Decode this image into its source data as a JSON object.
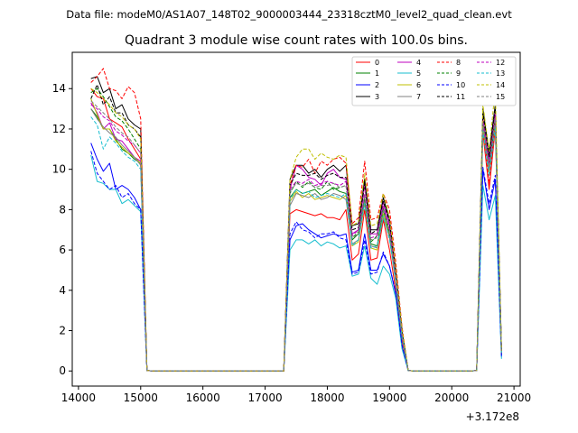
{
  "header": {
    "data_file": "Data file: modeM0/AS1A07_148T02_9000003444_23318cztM0_level2_quad_clean.evt"
  },
  "chart_data": {
    "type": "line",
    "title": "Quadrant 3 module wise count rates with 100.0s bins.",
    "xlabel": "",
    "ylabel": "",
    "x_offset_label": "+3.172e8",
    "xlim": [
      13900,
      21100
    ],
    "ylim": [
      -0.75,
      15.8
    ],
    "x_ticks": [
      14000,
      15000,
      16000,
      17000,
      18000,
      19000,
      20000,
      21000
    ],
    "x_tick_labels": [
      "14000",
      "15000",
      "16000",
      "17000",
      "18000",
      "19000",
      "20000",
      "21000"
    ],
    "y_ticks": [
      0,
      2,
      4,
      6,
      8,
      10,
      12,
      14
    ],
    "y_tick_labels": [
      "0",
      "2",
      "4",
      "6",
      "8",
      "10",
      "12",
      "14"
    ],
    "grid": false,
    "legend_position": "top-right",
    "legend_columns": 4,
    "x": [
      14200,
      14300,
      14400,
      14500,
      14600,
      14700,
      14800,
      14900,
      15000,
      15100,
      15200,
      15300,
      15400,
      15500,
      15600,
      15700,
      15800,
      15900,
      16000,
      16100,
      16200,
      16300,
      16400,
      16500,
      16600,
      16700,
      16800,
      16900,
      17000,
      17100,
      17200,
      17300,
      17400,
      17500,
      17600,
      17700,
      17800,
      17900,
      18000,
      18100,
      18200,
      18300,
      18400,
      18500,
      18600,
      18700,
      18800,
      18900,
      19000,
      19100,
      19200,
      19300,
      19400,
      19500,
      19600,
      19700,
      19800,
      19900,
      20000,
      20100,
      20200,
      20300,
      20400,
      20500,
      20600,
      20700,
      20800
    ],
    "series": [
      {
        "name": "0",
        "color": "#ff0000",
        "dash": "solid",
        "values": [
          14.0,
          13.6,
          13.5,
          12.5,
          12.3,
          12.1,
          11.5,
          11.0,
          10.5,
          0.02,
          0,
          0,
          0,
          0,
          0,
          0,
          0,
          0,
          0,
          0,
          0,
          0,
          0,
          0,
          0,
          0,
          0,
          0,
          0,
          0,
          0,
          0,
          7.8,
          8.0,
          7.9,
          7.8,
          7.7,
          7.8,
          7.6,
          7.6,
          7.5,
          8.0,
          5.5,
          5.8,
          8.0,
          5.5,
          5.6,
          7.5,
          6.0,
          4.0,
          1.5,
          0.02,
          0,
          0,
          0,
          0,
          0,
          0,
          0,
          0,
          0,
          0,
          0.02,
          11.8,
          9.0,
          12.0,
          0.8
        ]
      },
      {
        "name": "1",
        "color": "#008000",
        "dash": "solid",
        "values": [
          13.0,
          12.6,
          12.0,
          12.0,
          11.5,
          11.0,
          10.8,
          10.5,
          10.3,
          0.02,
          0,
          0,
          0,
          0,
          0,
          0,
          0,
          0,
          0,
          0,
          0,
          0,
          0,
          0,
          0,
          0,
          0,
          0,
          0,
          0,
          0,
          0,
          8.6,
          9.0,
          8.8,
          8.9,
          9.0,
          8.7,
          8.9,
          9.1,
          8.9,
          8.8,
          6.5,
          6.8,
          8.5,
          6.3,
          6.2,
          8.0,
          6.8,
          4.6,
          1.8,
          0.02,
          0,
          0,
          0,
          0,
          0,
          0,
          0,
          0,
          0,
          0,
          0.02,
          12.3,
          10.0,
          12.5,
          1.0
        ]
      },
      {
        "name": "2",
        "color": "#0000ff",
        "dash": "solid",
        "values": [
          11.3,
          10.5,
          9.9,
          10.3,
          9.0,
          9.2,
          9.0,
          8.6,
          8.0,
          0.02,
          0,
          0,
          0,
          0,
          0,
          0,
          0,
          0,
          0,
          0,
          0,
          0,
          0,
          0,
          0,
          0,
          0,
          0,
          0,
          0,
          0,
          0,
          6.5,
          7.2,
          7.3,
          7.0,
          6.8,
          6.6,
          6.7,
          6.8,
          6.7,
          6.8,
          4.9,
          5.0,
          6.8,
          5.0,
          5.0,
          5.8,
          5.2,
          3.8,
          1.2,
          0.02,
          0,
          0,
          0,
          0,
          0,
          0,
          0,
          0,
          0,
          0,
          0.02,
          10.0,
          8.0,
          9.5,
          0.7
        ]
      },
      {
        "name": "3",
        "color": "#000000",
        "dash": "solid",
        "values": [
          14.5,
          14.6,
          13.8,
          14.0,
          13.0,
          13.2,
          12.5,
          12.2,
          12.0,
          0.02,
          0,
          0,
          0,
          0,
          0,
          0,
          0,
          0,
          0,
          0,
          0,
          0,
          0,
          0,
          0,
          0,
          0,
          0,
          0,
          0,
          0,
          0,
          9.5,
          10.2,
          10.2,
          9.8,
          10.0,
          9.6,
          10.0,
          10.2,
          9.9,
          10.2,
          7.2,
          7.3,
          9.5,
          7.0,
          7.0,
          8.6,
          7.5,
          5.0,
          2.0,
          0.02,
          0,
          0,
          0,
          0,
          0,
          0,
          0,
          0,
          0,
          0,
          0.02,
          13.0,
          10.8,
          13.2,
          1.0
        ]
      },
      {
        "name": "4",
        "color": "#bf00bf",
        "dash": "solid",
        "values": [
          13.3,
          12.8,
          12.0,
          12.3,
          11.5,
          11.4,
          11.0,
          10.6,
          10.4,
          0.02,
          0,
          0,
          0,
          0,
          0,
          0,
          0,
          0,
          0,
          0,
          0,
          0,
          0,
          0,
          0,
          0,
          0,
          0,
          0,
          0,
          0,
          0,
          9.0,
          10.2,
          10.0,
          9.6,
          9.5,
          9.2,
          9.8,
          10.0,
          9.6,
          9.5,
          6.8,
          7.0,
          9.2,
          6.8,
          6.8,
          8.4,
          7.2,
          4.8,
          1.9,
          0.02,
          0,
          0,
          0,
          0,
          0,
          0,
          0,
          0,
          0,
          0,
          0.02,
          12.5,
          10.5,
          12.8,
          1.0
        ]
      },
      {
        "name": "5",
        "color": "#17becf",
        "dash": "solid",
        "values": [
          10.7,
          9.4,
          9.3,
          9.0,
          9.0,
          8.3,
          8.5,
          8.2,
          7.9,
          0.02,
          0,
          0,
          0,
          0,
          0,
          0,
          0,
          0,
          0,
          0,
          0,
          0,
          0,
          0,
          0,
          0,
          0,
          0,
          0,
          0,
          0,
          0,
          6.0,
          6.5,
          6.5,
          6.3,
          6.5,
          6.2,
          6.4,
          6.3,
          6.1,
          6.2,
          4.7,
          4.8,
          6.2,
          4.6,
          4.3,
          5.2,
          4.8,
          3.6,
          1.1,
          0.02,
          0,
          0,
          0,
          0,
          0,
          0,
          0,
          0,
          0,
          0,
          0.02,
          9.2,
          7.5,
          8.7,
          0.6
        ]
      },
      {
        "name": "6",
        "color": "#bfbf00",
        "dash": "solid",
        "values": [
          13.5,
          12.7,
          12.0,
          12.0,
          11.4,
          11.1,
          10.8,
          10.6,
          10.3,
          0.02,
          0,
          0,
          0,
          0,
          0,
          0,
          0,
          0,
          0,
          0,
          0,
          0,
          0,
          0,
          0,
          0,
          0,
          0,
          0,
          0,
          0,
          0,
          8.4,
          8.9,
          8.6,
          8.8,
          8.5,
          8.6,
          8.7,
          8.6,
          8.5,
          8.7,
          6.2,
          6.4,
          8.3,
          6.1,
          6.0,
          7.8,
          6.6,
          4.4,
          1.8,
          0.02,
          0,
          0,
          0,
          0,
          0,
          0,
          0,
          0,
          0,
          0,
          0.02,
          12.0,
          9.8,
          12.2,
          0.9
        ]
      },
      {
        "name": "7",
        "color": "#808080",
        "dash": "solid",
        "values": [
          13.0,
          12.5,
          12.1,
          11.8,
          11.6,
          11.2,
          10.9,
          10.6,
          10.2,
          0.02,
          0,
          0,
          0,
          0,
          0,
          0,
          0,
          0,
          0,
          0,
          0,
          0,
          0,
          0,
          0,
          0,
          0,
          0,
          0,
          0,
          0,
          0,
          8.2,
          8.8,
          8.7,
          8.6,
          8.8,
          8.5,
          8.6,
          8.8,
          8.7,
          8.5,
          6.3,
          6.5,
          8.4,
          6.2,
          6.1,
          7.6,
          6.6,
          4.5,
          1.7,
          0.02,
          0,
          0,
          0,
          0,
          0,
          0,
          0,
          0,
          0,
          0,
          0.02,
          12.2,
          10.0,
          12.4,
          0.9
        ]
      },
      {
        "name": "8",
        "color": "#ff0000",
        "dash": "dashed",
        "values": [
          14.3,
          14.6,
          15.0,
          14.0,
          13.9,
          13.5,
          14.1,
          13.8,
          12.5,
          0.02,
          0,
          0,
          0,
          0,
          0,
          0,
          0,
          0,
          0,
          0,
          0,
          0,
          0,
          0,
          0,
          0,
          0,
          0,
          0,
          0,
          0,
          0,
          9.2,
          10.2,
          10.1,
          10.5,
          9.8,
          10.4,
          10.2,
          10.5,
          10.6,
          10.3,
          7.3,
          7.6,
          10.4,
          7.5,
          7.6,
          8.8,
          8.0,
          5.4,
          2.2,
          0.02,
          0,
          0,
          0,
          0,
          0,
          0,
          0,
          0,
          0,
          0,
          0.02,
          12.6,
          9.2,
          12.5,
          1.0
        ]
      },
      {
        "name": "9",
        "color": "#008000",
        "dash": "dashed",
        "values": [
          13.8,
          14.0,
          13.6,
          13.1,
          12.6,
          12.4,
          12.0,
          11.5,
          11.0,
          0.02,
          0,
          0,
          0,
          0,
          0,
          0,
          0,
          0,
          0,
          0,
          0,
          0,
          0,
          0,
          0,
          0,
          0,
          0,
          0,
          0,
          0,
          0,
          8.8,
          9.4,
          9.1,
          9.4,
          9.1,
          9.0,
          9.4,
          9.0,
          9.1,
          9.2,
          6.6,
          6.9,
          8.6,
          6.4,
          6.7,
          8.1,
          6.9,
          4.7,
          1.9,
          0.02,
          0,
          0,
          0,
          0,
          0,
          0,
          0,
          0,
          0,
          0,
          0.02,
          12.4,
          10.2,
          12.6,
          1.0
        ]
      },
      {
        "name": "10",
        "color": "#0000ff",
        "dash": "dashed",
        "values": [
          10.9,
          9.8,
          9.4,
          9.0,
          9.2,
          8.6,
          8.8,
          8.3,
          8.0,
          0.02,
          0,
          0,
          0,
          0,
          0,
          0,
          0,
          0,
          0,
          0,
          0,
          0,
          0,
          0,
          0,
          0,
          0,
          0,
          0,
          0,
          0,
          0,
          6.8,
          7.4,
          7.0,
          6.9,
          6.6,
          6.8,
          6.8,
          6.9,
          6.6,
          6.5,
          4.8,
          4.9,
          6.5,
          4.8,
          4.9,
          5.9,
          5.2,
          3.9,
          1.3,
          0.02,
          0,
          0,
          0,
          0,
          0,
          0,
          0,
          0,
          0,
          0,
          0.02,
          10.1,
          8.3,
          9.7,
          0.7
        ]
      },
      {
        "name": "11",
        "color": "#000000",
        "dash": "dashed",
        "values": [
          13.5,
          14.2,
          13.2,
          13.6,
          12.8,
          12.8,
          12.2,
          12.0,
          11.6,
          0.02,
          0,
          0,
          0,
          0,
          0,
          0,
          0,
          0,
          0,
          0,
          0,
          0,
          0,
          0,
          0,
          0,
          0,
          0,
          0,
          0,
          0,
          0,
          9.2,
          9.8,
          9.7,
          9.7,
          9.8,
          9.5,
          9.7,
          9.8,
          9.6,
          9.6,
          7.0,
          7.1,
          9.3,
          6.8,
          7.0,
          8.4,
          7.4,
          4.9,
          2.0,
          0.02,
          0,
          0,
          0,
          0,
          0,
          0,
          0,
          0,
          0,
          0,
          0.02,
          12.8,
          10.6,
          13.0,
          1.0
        ]
      },
      {
        "name": "12",
        "color": "#bf00bf",
        "dash": "dashed",
        "values": [
          13.2,
          13.0,
          12.6,
          12.4,
          11.9,
          11.7,
          11.4,
          11.2,
          10.8,
          0.02,
          0,
          0,
          0,
          0,
          0,
          0,
          0,
          0,
          0,
          0,
          0,
          0,
          0,
          0,
          0,
          0,
          0,
          0,
          0,
          0,
          0,
          0,
          9.0,
          9.4,
          9.3,
          9.5,
          9.2,
          9.3,
          9.4,
          9.3,
          9.2,
          9.4,
          6.7,
          7.0,
          8.8,
          6.6,
          6.7,
          8.2,
          7.0,
          4.7,
          1.9,
          0.02,
          0,
          0,
          0,
          0,
          0,
          0,
          0,
          0,
          0,
          0,
          0.02,
          12.4,
          10.3,
          12.7,
          1.0
        ]
      },
      {
        "name": "13",
        "color": "#17becf",
        "dash": "dashed",
        "values": [
          12.6,
          12.2,
          11.0,
          11.6,
          11.3,
          10.9,
          10.6,
          10.4,
          10.0,
          0.02,
          0,
          0,
          0,
          0,
          0,
          0,
          0,
          0,
          0,
          0,
          0,
          0,
          0,
          0,
          0,
          0,
          0,
          0,
          0,
          0,
          0,
          0,
          8.5,
          9.0,
          8.8,
          8.9,
          8.6,
          8.7,
          8.8,
          8.7,
          8.6,
          8.8,
          6.2,
          6.5,
          8.3,
          6.1,
          6.2,
          7.7,
          6.5,
          4.4,
          1.7,
          0.02,
          0,
          0,
          0,
          0,
          0,
          0,
          0,
          0,
          0,
          0,
          0.02,
          11.9,
          9.7,
          12.1,
          0.9
        ]
      },
      {
        "name": "14",
        "color": "#bfbf00",
        "dash": "dashed",
        "values": [
          14.0,
          13.8,
          13.5,
          13.2,
          12.8,
          12.6,
          12.2,
          12.0,
          11.5,
          0.02,
          0,
          0,
          0,
          0,
          0,
          0,
          0,
          0,
          0,
          0,
          0,
          0,
          0,
          0,
          0,
          0,
          0,
          0,
          0,
          0,
          0,
          0,
          9.5,
          10.6,
          11.0,
          11.0,
          10.5,
          10.8,
          10.6,
          10.5,
          10.7,
          10.6,
          7.2,
          7.4,
          9.8,
          7.2,
          7.3,
          8.8,
          7.6,
          5.1,
          2.1,
          0.02,
          0,
          0,
          0,
          0,
          0,
          0,
          0,
          0,
          0,
          0,
          0.02,
          13.2,
          10.9,
          14.0,
          1.0
        ]
      },
      {
        "name": "15",
        "color": "#808080",
        "dash": "dashed",
        "values": [
          13.4,
          13.1,
          12.8,
          12.5,
          12.1,
          11.8,
          11.6,
          11.2,
          10.8,
          0.02,
          0,
          0,
          0,
          0,
          0,
          0,
          0,
          0,
          0,
          0,
          0,
          0,
          0,
          0,
          0,
          0,
          0,
          0,
          0,
          0,
          0,
          0,
          8.9,
          9.3,
          9.2,
          9.3,
          9.1,
          9.2,
          9.2,
          9.3,
          9.1,
          9.2,
          6.6,
          6.8,
          8.7,
          6.5,
          6.6,
          8.0,
          6.9,
          4.6,
          1.8,
          0.02,
          0,
          0,
          0,
          0,
          0,
          0,
          0,
          0,
          0,
          0,
          0.02,
          12.3,
          10.1,
          12.5,
          0.9
        ]
      }
    ]
  }
}
